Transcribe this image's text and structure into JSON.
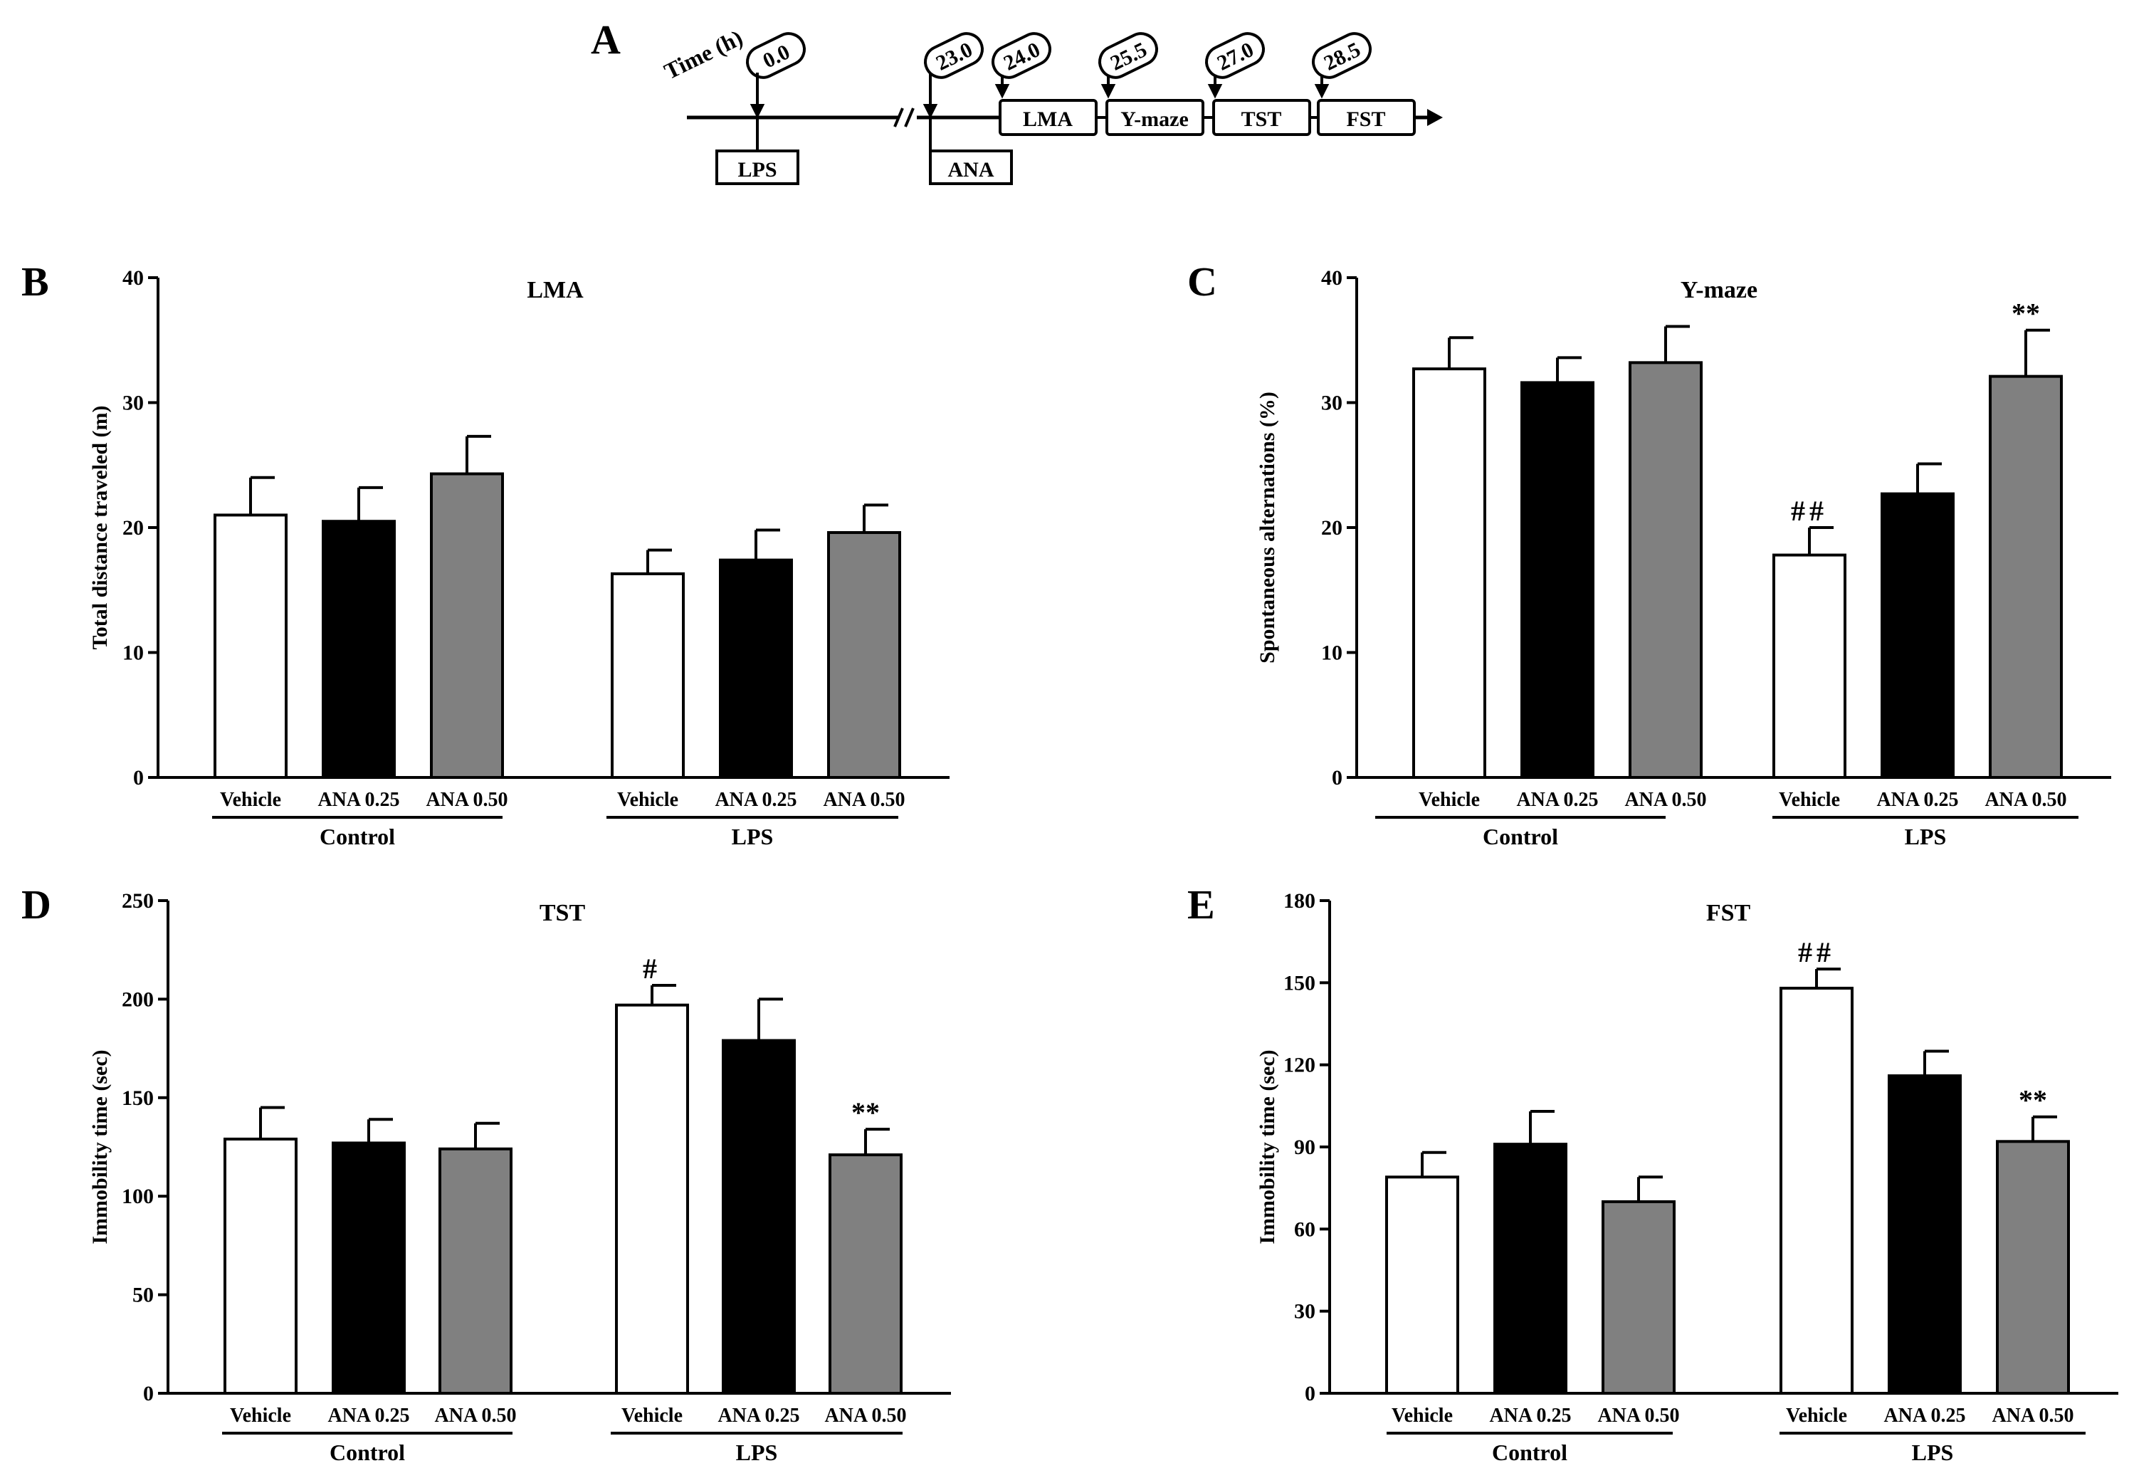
{
  "colors": {
    "bar_white": "#ffffff",
    "bar_black": "#000000",
    "bar_gray": "#808080",
    "ink": "#000000"
  },
  "timeline": {
    "panel_label": "A",
    "time_label": "Time (h)",
    "time_points": [
      "0.0",
      "23.0",
      "24.0",
      "25.5",
      "27.0",
      "28.5"
    ],
    "treatments": [
      "LPS",
      "ANA"
    ],
    "tests": [
      "LMA",
      "Y-maze",
      "TST",
      "FST"
    ]
  },
  "chart_data": [
    {
      "panel": "B",
      "type": "bar",
      "title": "LMA",
      "ylabel": "Total distance traveled (m)",
      "ylim": [
        0,
        40
      ],
      "yticks": [
        0,
        10,
        20,
        30,
        40
      ],
      "groups": [
        "Control",
        "LPS"
      ],
      "categories": [
        "Vehicle",
        "ANA 0.25",
        "ANA 0.50",
        "Vehicle",
        "ANA 0.25",
        "ANA 0.50"
      ],
      "values": [
        21.0,
        20.5,
        24.3,
        16.3,
        17.4,
        19.6
      ],
      "errors": [
        3.0,
        2.7,
        3.0,
        1.9,
        2.4,
        2.2
      ],
      "annotations": [
        "",
        "",
        "",
        "",
        "",
        ""
      ]
    },
    {
      "panel": "C",
      "type": "bar",
      "title": "Y-maze",
      "ylabel": "Spontaneous alternations (%)",
      "ylim": [
        0,
        40
      ],
      "yticks": [
        0,
        10,
        20,
        30,
        40
      ],
      "groups": [
        "Control",
        "LPS"
      ],
      "categories": [
        "Vehicle",
        "ANA 0.25",
        "ANA 0.50",
        "Vehicle",
        "ANA 0.25",
        "ANA 0.50"
      ],
      "values": [
        32.7,
        31.6,
        33.2,
        17.8,
        22.7,
        32.1
      ],
      "errors": [
        2.5,
        2.0,
        2.9,
        2.2,
        2.4,
        3.7
      ],
      "annotations": [
        "",
        "",
        "",
        "##",
        "",
        "**"
      ]
    },
    {
      "panel": "D",
      "type": "bar",
      "title": "TST",
      "ylabel": "Immobility time (sec)",
      "ylim": [
        0,
        250
      ],
      "yticks": [
        0,
        50,
        100,
        150,
        200,
        250
      ],
      "groups": [
        "Control",
        "LPS"
      ],
      "categories": [
        "Vehicle",
        "ANA 0.25",
        "ANA 0.50",
        "Vehicle",
        "ANA 0.25",
        "ANA 0.50"
      ],
      "values": [
        129,
        127,
        124,
        197,
        179,
        121
      ],
      "errors": [
        16,
        12,
        13,
        10,
        21,
        13
      ],
      "annotations": [
        "",
        "",
        "",
        "#",
        "",
        "**"
      ]
    },
    {
      "panel": "E",
      "type": "bar",
      "title": "FST",
      "ylabel": "Immobility time (sec)",
      "ylim": [
        0,
        180
      ],
      "yticks": [
        0,
        30,
        60,
        90,
        120,
        150,
        180
      ],
      "groups": [
        "Control",
        "LPS"
      ],
      "categories": [
        "Vehicle",
        "ANA 0.25",
        "ANA 0.50",
        "Vehicle",
        "ANA 0.25",
        "ANA 0.50"
      ],
      "values": [
        79,
        91,
        70,
        148,
        116,
        92
      ],
      "errors": [
        9,
        12,
        9,
        7,
        9,
        9
      ],
      "annotations": [
        "",
        "",
        "",
        "##",
        "",
        "**"
      ]
    }
  ]
}
